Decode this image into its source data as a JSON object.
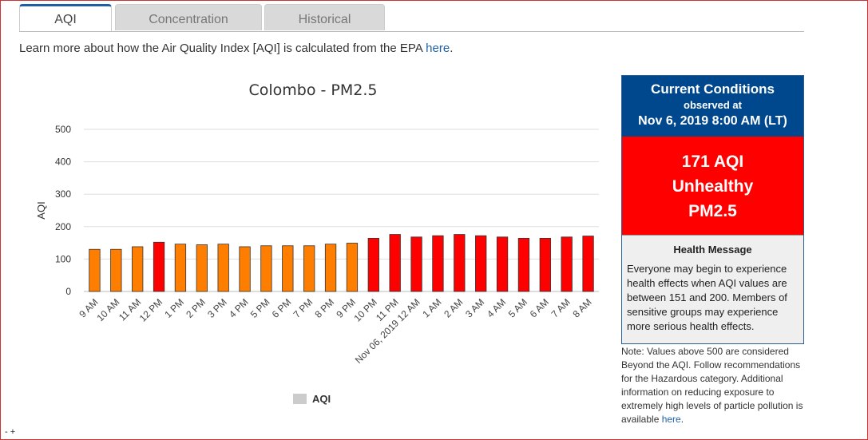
{
  "tabs": [
    {
      "label": "AQI",
      "active": true
    },
    {
      "label": "Concentration",
      "active": false
    },
    {
      "label": "Historical",
      "active": false
    }
  ],
  "intro": {
    "text": "Learn more about how the Air Quality Index [AQI] is calculated from the EPA ",
    "link": "here",
    "suffix": "."
  },
  "chart_data": {
    "type": "bar",
    "title": "Colombo - PM2.5",
    "xlabel": "",
    "ylabel": "AQI",
    "ylim": [
      0,
      500
    ],
    "yticks": [
      0,
      100,
      200,
      300,
      400,
      500
    ],
    "grid": true,
    "legend_position": "bottom",
    "categories": [
      "9 AM",
      "10 AM",
      "11 AM",
      "12 PM",
      "1 PM",
      "2 PM",
      "3 PM",
      "4 PM",
      "5 PM",
      "6 PM",
      "7 PM",
      "8 PM",
      "9 PM",
      "10 PM",
      "11 PM",
      "Nov 06, 2019 12 AM",
      "1 AM",
      "2 AM",
      "3 AM",
      "4 AM",
      "5 AM",
      "6 AM",
      "7 AM",
      "8 AM"
    ],
    "series": [
      {
        "name": "AQI",
        "values": [
          130,
          130,
          138,
          152,
          146,
          144,
          146,
          138,
          141,
          141,
          141,
          146,
          149,
          164,
          176,
          168,
          172,
          176,
          172,
          168,
          164,
          164,
          168,
          171
        ],
        "colors": [
          "#ff7e00",
          "#ff7e00",
          "#ff7e00",
          "#ff0000",
          "#ff7e00",
          "#ff7e00",
          "#ff7e00",
          "#ff7e00",
          "#ff7e00",
          "#ff7e00",
          "#ff7e00",
          "#ff7e00",
          "#ff7e00",
          "#ff0000",
          "#ff0000",
          "#ff0000",
          "#ff0000",
          "#ff0000",
          "#ff0000",
          "#ff0000",
          "#ff0000",
          "#ff0000",
          "#ff0000",
          "#ff0000"
        ]
      }
    ],
    "legend_color": "#cccccc"
  },
  "current": {
    "title": "Current Conditions",
    "observed": "observed at",
    "datetime": "Nov 6, 2019 8:00 AM (LT)",
    "aqi": "171 AQI",
    "category": "Unhealthy",
    "pollutant": "PM2.5",
    "color": "#ff0000",
    "health_title": "Health Message",
    "health_message": "Everyone may begin to experience health effects when AQI values are between 151 and 200. Members of sensitive groups may experience more serious health effects."
  },
  "note": {
    "text": "Note: Values above 500 are considered Beyond the AQI. Follow recommendations for the Hazardous category. Additional information on reducing exposure to extremely high levels of particle pollution is available ",
    "link": "here",
    "suffix": "."
  },
  "corner": "- +"
}
